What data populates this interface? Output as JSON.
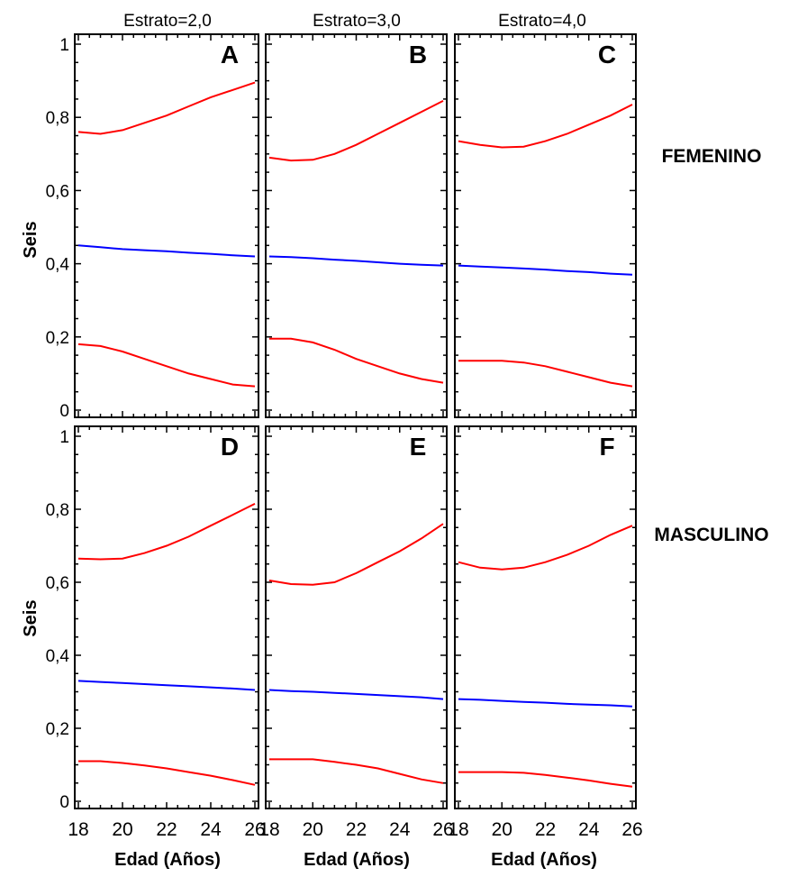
{
  "chart_data": {
    "type": "line",
    "x_range": [
      18,
      26
    ],
    "y_range": [
      0,
      1
    ],
    "x_ticks": [
      "18",
      "20",
      "22",
      "24",
      "26"
    ],
    "y_ticks": [
      "0",
      "0,2",
      "0,4",
      "0,6",
      "0,8",
      "1"
    ],
    "xlabel": "Edad (Años)",
    "ylabel": "Seis",
    "columns": [
      "Estrato=2,0",
      "Estrato=3,0",
      "Estrato=4,0"
    ],
    "rows": [
      "FEMENINO",
      "MASCULINO"
    ],
    "colors": {
      "fit": "#0000ff",
      "limits": "#ff0000"
    },
    "x": [
      18,
      19,
      20,
      21,
      22,
      23,
      24,
      25,
      26
    ],
    "panels": [
      {
        "label": "A",
        "row": 0,
        "col": 0,
        "lower": [
          0.18,
          0.175,
          0.16,
          0.14,
          0.12,
          0.1,
          0.085,
          0.07,
          0.065
        ],
        "fit": [
          0.45,
          0.445,
          0.44,
          0.437,
          0.434,
          0.43,
          0.427,
          0.423,
          0.42
        ],
        "upper": [
          0.76,
          0.755,
          0.765,
          0.785,
          0.805,
          0.83,
          0.855,
          0.875,
          0.895
        ]
      },
      {
        "label": "B",
        "row": 0,
        "col": 1,
        "lower": [
          0.195,
          0.195,
          0.185,
          0.165,
          0.14,
          0.12,
          0.1,
          0.085,
          0.075
        ],
        "fit": [
          0.42,
          0.418,
          0.415,
          0.411,
          0.408,
          0.404,
          0.4,
          0.397,
          0.395
        ],
        "upper": [
          0.69,
          0.682,
          0.684,
          0.7,
          0.725,
          0.755,
          0.785,
          0.815,
          0.845
        ]
      },
      {
        "label": "C",
        "row": 0,
        "col": 2,
        "lower": [
          0.135,
          0.135,
          0.135,
          0.13,
          0.12,
          0.105,
          0.09,
          0.075,
          0.065
        ],
        "fit": [
          0.395,
          0.392,
          0.39,
          0.387,
          0.384,
          0.38,
          0.377,
          0.373,
          0.37
        ],
        "upper": [
          0.735,
          0.725,
          0.718,
          0.72,
          0.735,
          0.755,
          0.78,
          0.805,
          0.835
        ]
      },
      {
        "label": "D",
        "row": 1,
        "col": 0,
        "lower": [
          0.11,
          0.11,
          0.105,
          0.098,
          0.09,
          0.08,
          0.07,
          0.058,
          0.045
        ],
        "fit": [
          0.33,
          0.327,
          0.324,
          0.321,
          0.318,
          0.315,
          0.312,
          0.309,
          0.305
        ],
        "upper": [
          0.665,
          0.663,
          0.665,
          0.68,
          0.7,
          0.725,
          0.755,
          0.785,
          0.815
        ]
      },
      {
        "label": "E",
        "row": 1,
        "col": 1,
        "lower": [
          0.115,
          0.115,
          0.115,
          0.108,
          0.1,
          0.09,
          0.075,
          0.06,
          0.05
        ],
        "fit": [
          0.305,
          0.302,
          0.3,
          0.297,
          0.294,
          0.291,
          0.288,
          0.285,
          0.28
        ],
        "upper": [
          0.605,
          0.595,
          0.593,
          0.6,
          0.625,
          0.655,
          0.685,
          0.72,
          0.76
        ]
      },
      {
        "label": "F",
        "row": 1,
        "col": 2,
        "lower": [
          0.08,
          0.08,
          0.08,
          0.078,
          0.072,
          0.065,
          0.057,
          0.048,
          0.04
        ],
        "fit": [
          0.28,
          0.278,
          0.275,
          0.272,
          0.27,
          0.267,
          0.265,
          0.263,
          0.26
        ],
        "upper": [
          0.655,
          0.64,
          0.635,
          0.64,
          0.655,
          0.675,
          0.7,
          0.73,
          0.755
        ]
      }
    ]
  }
}
